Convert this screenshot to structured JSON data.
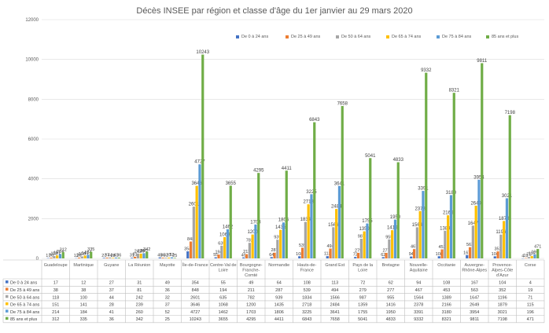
{
  "chart_data": {
    "type": "bar",
    "title": "Décès INSEE par région et classe d'âge du 1er janvier au 29 mars 2020",
    "ylim": [
      0,
      12000
    ],
    "yticks": [
      "0",
      "2000",
      "4000",
      "6000",
      "8000",
      "10000",
      "12000"
    ],
    "grid": true,
    "legend_position": "top-right",
    "categories": [
      "Guadeloupe",
      "Martinique",
      "Guyane",
      "La Réunion",
      "Mayotte",
      "Île-de-France",
      "Centre-Val de Loire",
      "Bourgogne-Franche-Comté",
      "Normandie",
      "Hauts-de-France",
      "Grand Est",
      "Pays de la Loire",
      "Bretagne",
      "Nouvelle-Aquitaine",
      "Occitanie",
      "Auvergne-Rhône-Alpes",
      "Provence-Alpes-Côte d'Azur",
      "Corse"
    ],
    "series": [
      {
        "name": "De 0 à 24 ans",
        "color": "#4472C4",
        "values": [
          17,
          12,
          27,
          31,
          49,
          354,
          55,
          49,
          64,
          108,
          113,
          72,
          62,
          94,
          108,
          167,
          104,
          4
        ]
      },
      {
        "name": "De 25 à 49 ans",
        "color": "#ED7D31",
        "values": [
          38,
          38,
          37,
          81,
          36,
          848,
          194,
          211,
          287,
          539,
          494,
          279,
          277,
          467,
          453,
          563,
          352,
          19
        ]
      },
      {
        "name": "De 50 à 64 ans",
        "color": "#A5A5A5",
        "values": [
          118,
          100,
          44,
          242,
          32,
          2601,
          635,
          782,
          939,
          1834,
          1566,
          987,
          955,
          1564,
          1389,
          1647,
          1196,
          71
        ]
      },
      {
        "name": "De 65 à 74 ans",
        "color": "#FFC000",
        "values": [
          151,
          141,
          28,
          239,
          37,
          3646,
          1068,
          1200,
          1435,
          2718,
          2484,
          1359,
          1416,
          2378,
          2166,
          2649,
          1879,
          115
        ]
      },
      {
        "name": "De 75 à 84 ans",
        "color": "#5B9BD5",
        "values": [
          214,
          184,
          41,
          260,
          52,
          4727,
          1462,
          1703,
          1806,
          3225,
          3641,
          1755,
          1950,
          3391,
          3180,
          3954,
          3021,
          196
        ]
      },
      {
        "name": "85 ans et plus",
        "color": "#70AD47",
        "values": [
          312,
          335,
          36,
          342,
          25,
          10243,
          3655,
          4295,
          4411,
          6843,
          7658,
          5041,
          4833,
          9332,
          8321,
          9811,
          7198,
          471
        ]
      }
    ]
  },
  "table": {
    "category_labels": [
      [
        "Guadeloupe"
      ],
      [
        "Martinique"
      ],
      [
        "Guyane"
      ],
      [
        "La Réunion"
      ],
      [
        "Mayotte"
      ],
      [
        "Île-de-France"
      ],
      [
        "Centre-Val de",
        "Loire"
      ],
      [
        "Bourgogne-",
        "Franche-",
        "Comté"
      ],
      [
        "Normandie"
      ],
      [
        "Hauts-de-",
        "France"
      ],
      [
        "Grand Est"
      ],
      [
        "Pays de la",
        "Loire"
      ],
      [
        "Bretagne"
      ],
      [
        "Nouvelle-",
        "Aquitaine"
      ],
      [
        "Occitanie"
      ],
      [
        "Auvergne-",
        "Rhône-Alpes"
      ],
      [
        "Provence-",
        "Alpes-Côte",
        "d'Azur"
      ],
      [
        "Corse"
      ]
    ]
  }
}
